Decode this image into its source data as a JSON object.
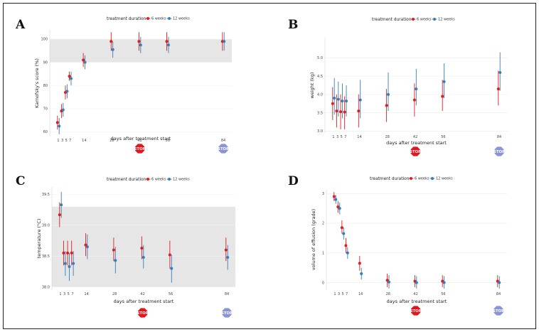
{
  "figure": {
    "legend_title": "treatment duration",
    "stop_label": "STOP",
    "colors": {
      "six_weeks": "#e41a1c",
      "twelve_weeks": "#377eb8",
      "stop_6w": "#e8141c",
      "stop_12w": "#8a93d6",
      "normal_band": "#e6e6e6",
      "grid": "#ffffff"
    },
    "icons": {
      "stop_sign": "stop-sign-icon"
    }
  },
  "chart_data": [
    {
      "panel": "A",
      "type": "scatter",
      "title": "",
      "xlabel": "days after treatment start",
      "ylabel": "Karnofsky's score (%)",
      "x": [
        1,
        3,
        5,
        7,
        14,
        28,
        42,
        56,
        84
      ],
      "x_ticks": [
        1,
        3,
        5,
        7,
        14,
        28,
        42,
        56,
        84
      ],
      "ylim": [
        58,
        104
      ],
      "y_ticks": [
        60,
        70,
        80,
        90,
        100
      ],
      "normal_range": [
        90,
        100
      ],
      "series": [
        {
          "name": "6 weeks",
          "values": [
            64,
            69,
            77,
            84,
            91,
            99,
            99,
            99,
            99
          ],
          "lower": [
            61,
            66,
            74,
            82,
            88,
            95,
            95,
            95,
            95
          ],
          "upper": [
            67,
            72,
            80,
            86,
            94,
            103,
            103,
            103,
            103
          ]
        },
        {
          "name": "12 weeks",
          "values": [
            62.5,
            69.5,
            77.5,
            83,
            90,
            95.5,
            97.5,
            97.5,
            99
          ],
          "lower": [
            59,
            66.5,
            74.5,
            80,
            87,
            92,
            94,
            94,
            95
          ],
          "upper": [
            66,
            72.5,
            80.5,
            86,
            93,
            99,
            101,
            101,
            103
          ]
        }
      ],
      "stop_6w_day": 42,
      "stop_12w_day": 84
    },
    {
      "panel": "B",
      "type": "scatter",
      "title": "",
      "xlabel": "days after treatment start",
      "ylabel": "weight (kg)",
      "x": [
        1,
        3,
        5,
        7,
        14,
        28,
        42,
        56,
        84
      ],
      "x_ticks": [
        1,
        3,
        5,
        7,
        14,
        28,
        42,
        56,
        84
      ],
      "ylim": [
        2.95,
        5.55
      ],
      "y_ticks": [
        3.0,
        3.5,
        4.0,
        4.5,
        5.0
      ],
      "y_tick_labels": [
        "3.0",
        "3.5",
        "4.0",
        "4.5",
        "5.0"
      ],
      "series": [
        {
          "name": "6 weeks",
          "values": [
            3.75,
            3.55,
            3.53,
            3.52,
            3.55,
            3.7,
            3.85,
            3.95,
            4.15
          ],
          "lower": [
            3.3,
            3.1,
            3.05,
            3.05,
            3.1,
            3.25,
            3.4,
            3.55,
            3.7
          ],
          "upper": [
            4.2,
            4.0,
            4.0,
            3.95,
            4.0,
            4.15,
            4.3,
            4.4,
            4.65
          ]
        },
        {
          "name": "12 weeks",
          "values": [
            3.9,
            3.87,
            3.82,
            3.82,
            3.85,
            4.0,
            4.15,
            4.35,
            4.6
          ],
          "lower": [
            3.45,
            3.4,
            3.35,
            3.4,
            3.35,
            3.55,
            3.7,
            3.9,
            4.1
          ],
          "upper": [
            4.45,
            4.35,
            4.3,
            4.25,
            4.4,
            4.6,
            4.7,
            4.85,
            5.15
          ]
        }
      ],
      "stop_6w_day": 42,
      "stop_12w_day": 84
    },
    {
      "panel": "C",
      "type": "scatter",
      "title": "",
      "xlabel": "days after treatment start",
      "ylabel": "temperature (°C)",
      "x": [
        1,
        3,
        5,
        7,
        14,
        28,
        42,
        56,
        84
      ],
      "x_ticks": [
        1,
        3,
        5,
        7,
        14,
        28,
        42,
        56,
        84
      ],
      "ylim": [
        37.95,
        39.62
      ],
      "y_ticks": [
        38.0,
        38.5,
        39.0,
        39.5
      ],
      "y_tick_labels": [
        "38.0",
        "38.5",
        "39.0",
        "39.5"
      ],
      "normal_range": [
        38.0,
        39.3
      ],
      "series": [
        {
          "name": "6 weeks",
          "values": [
            39.17,
            38.55,
            38.55,
            38.55,
            38.68,
            38.6,
            38.63,
            38.52,
            38.6
          ],
          "lower": [
            38.97,
            38.35,
            38.35,
            38.35,
            38.5,
            38.42,
            38.45,
            38.3,
            38.42
          ],
          "upper": [
            39.37,
            38.75,
            38.75,
            38.75,
            38.87,
            38.8,
            38.82,
            38.75,
            38.8
          ]
        },
        {
          "name": "12 weeks",
          "values": [
            39.33,
            38.38,
            38.33,
            38.38,
            38.65,
            38.43,
            38.48,
            38.3,
            38.48
          ],
          "lower": [
            39.12,
            38.18,
            38.1,
            38.18,
            38.45,
            38.22,
            38.3,
            38.07,
            38.28
          ],
          "upper": [
            39.54,
            38.58,
            38.55,
            38.58,
            38.85,
            38.65,
            38.68,
            38.52,
            38.68
          ]
        }
      ],
      "stop_6w_day": 42,
      "stop_12w_day": 84
    },
    {
      "panel": "D",
      "type": "scatter",
      "title": "",
      "xlabel": "days after treatment start",
      "ylabel": "volume of effusion (grade)",
      "x": [
        1,
        3,
        5,
        7,
        14,
        28,
        42,
        56,
        84
      ],
      "x_ticks": [
        1,
        3,
        5,
        7,
        14,
        28,
        42,
        56,
        84
      ],
      "ylim": [
        -0.25,
        3.15
      ],
      "y_ticks": [
        0,
        1,
        2,
        3
      ],
      "series": [
        {
          "name": "6 weeks",
          "values": [
            2.9,
            2.55,
            1.85,
            1.25,
            0.65,
            0.08,
            0.05,
            0.05,
            0.05
          ],
          "lower": [
            2.75,
            2.35,
            1.65,
            1.0,
            0.4,
            -0.15,
            -0.15,
            -0.15,
            -0.15
          ],
          "upper": [
            3.05,
            2.75,
            2.1,
            1.5,
            0.9,
            0.3,
            0.25,
            0.25,
            0.25
          ]
        },
        {
          "name": "12 weeks",
          "values": [
            2.8,
            2.5,
            1.65,
            1.0,
            0.3,
            0.02,
            0.0,
            0.0,
            0.0
          ],
          "lower": [
            2.65,
            2.3,
            1.45,
            0.8,
            0.1,
            -0.2,
            -0.2,
            -0.2,
            -0.2
          ],
          "upper": [
            2.95,
            2.7,
            1.85,
            1.2,
            0.5,
            0.25,
            0.22,
            0.22,
            0.22
          ]
        }
      ],
      "stop_6w_day": 42,
      "stop_12w_day": 84
    }
  ]
}
